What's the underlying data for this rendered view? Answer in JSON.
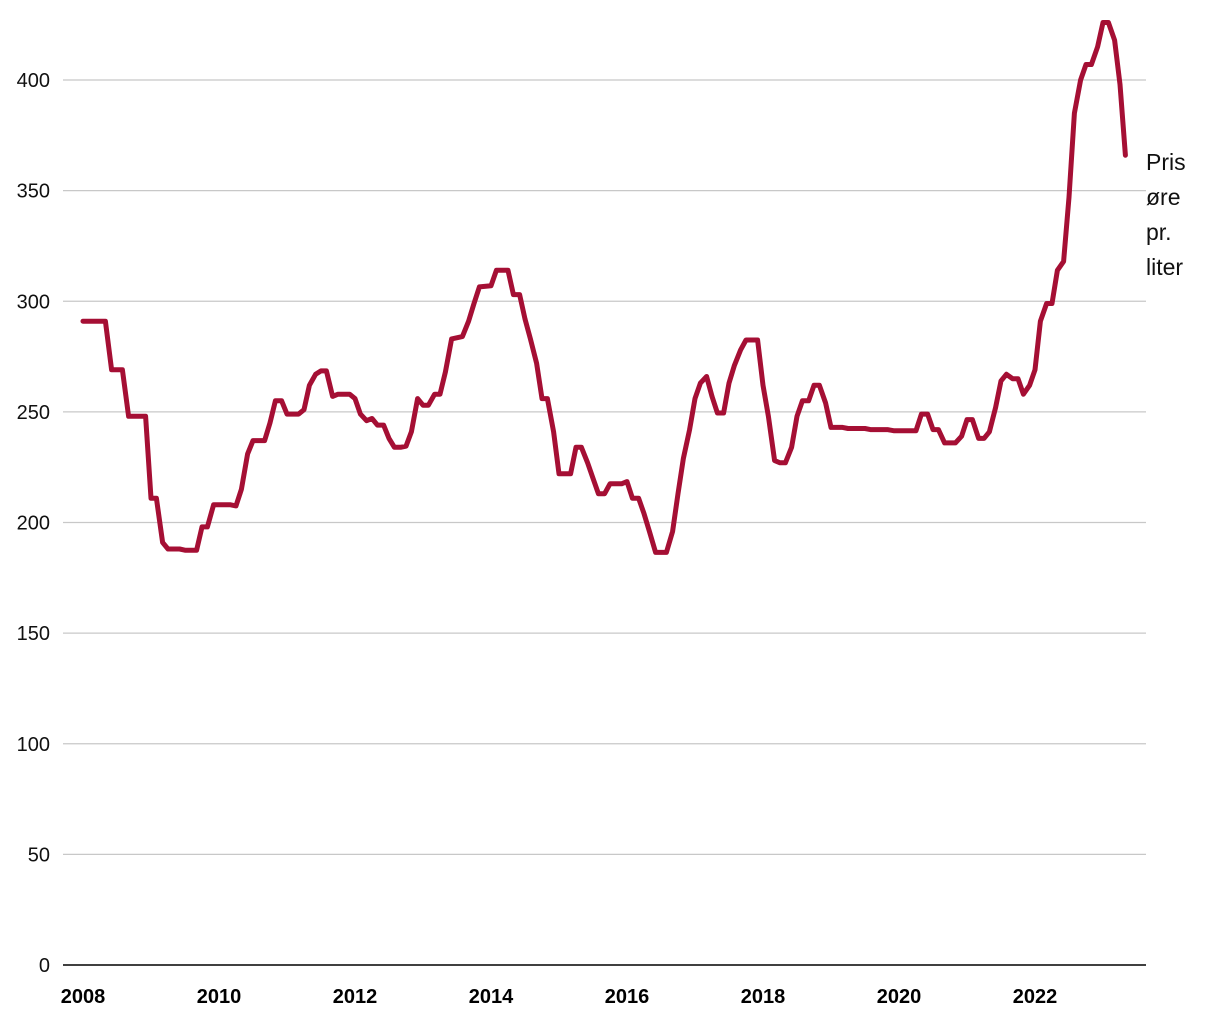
{
  "chart_data": {
    "type": "line",
    "title": "",
    "xlabel": "",
    "ylabel": "",
    "xlim": [
      2007.9,
      2023.7
    ],
    "ylim": [
      0,
      425
    ],
    "y_ticks": [
      "0",
      "50",
      "100",
      "150",
      "200",
      "250",
      "300",
      "350",
      "400"
    ],
    "x_ticks": [
      "2008",
      "2010",
      "2012",
      "2014",
      "2016",
      "2018",
      "2020",
      "2022"
    ],
    "grid": "horizontal",
    "line_color": "#a50f34",
    "grid_color": "#c8c8c8",
    "annotation": [
      "Pris",
      "øre",
      "pr.",
      "liter"
    ],
    "series": [
      {
        "points": [
          [
            2008.0,
            291
          ],
          [
            2008.33,
            291
          ],
          [
            2008.42,
            269
          ],
          [
            2008.58,
            269
          ],
          [
            2008.67,
            248
          ],
          [
            2008.92,
            248
          ],
          [
            2009.0,
            211
          ],
          [
            2009.08,
            211
          ],
          [
            2009.17,
            191
          ],
          [
            2009.25,
            188
          ],
          [
            2009.42,
            188
          ],
          [
            2009.5,
            187.5
          ],
          [
            2009.67,
            187.5
          ],
          [
            2009.75,
            198
          ],
          [
            2009.83,
            198
          ],
          [
            2009.92,
            208
          ],
          [
            2010.17,
            208
          ],
          [
            2010.25,
            207.5
          ],
          [
            2010.33,
            215
          ],
          [
            2010.42,
            231
          ],
          [
            2010.5,
            237
          ],
          [
            2010.67,
            237
          ],
          [
            2010.75,
            245
          ],
          [
            2010.83,
            255
          ],
          [
            2010.92,
            255
          ],
          [
            2011.0,
            249
          ],
          [
            2011.17,
            249
          ],
          [
            2011.25,
            251
          ],
          [
            2011.33,
            262
          ],
          [
            2011.42,
            267
          ],
          [
            2011.5,
            268.5
          ],
          [
            2011.58,
            268.5
          ],
          [
            2011.67,
            257
          ],
          [
            2011.75,
            258
          ],
          [
            2011.92,
            258
          ],
          [
            2012.0,
            256
          ],
          [
            2012.08,
            249
          ],
          [
            2012.17,
            246
          ],
          [
            2012.25,
            247
          ],
          [
            2012.33,
            244
          ],
          [
            2012.42,
            244
          ],
          [
            2012.5,
            238
          ],
          [
            2012.58,
            234
          ],
          [
            2012.67,
            234
          ],
          [
            2012.75,
            234.5
          ],
          [
            2012.83,
            241
          ],
          [
            2012.92,
            256
          ],
          [
            2013.0,
            253
          ],
          [
            2013.08,
            253
          ],
          [
            2013.17,
            258
          ],
          [
            2013.25,
            258
          ],
          [
            2013.33,
            268
          ],
          [
            2013.42,
            283
          ],
          [
            2013.58,
            284
          ],
          [
            2013.67,
            291
          ],
          [
            2013.75,
            299
          ],
          [
            2013.83,
            306.5
          ],
          [
            2014.0,
            307
          ],
          [
            2014.08,
            314
          ],
          [
            2014.25,
            314
          ],
          [
            2014.33,
            303
          ],
          [
            2014.42,
            303
          ],
          [
            2014.5,
            292
          ],
          [
            2014.58,
            283
          ],
          [
            2014.67,
            272
          ],
          [
            2014.75,
            256
          ],
          [
            2014.83,
            256
          ],
          [
            2014.92,
            241
          ],
          [
            2015.0,
            222
          ],
          [
            2015.17,
            222
          ],
          [
            2015.25,
            234
          ],
          [
            2015.33,
            234
          ],
          [
            2015.42,
            227
          ],
          [
            2015.5,
            220
          ],
          [
            2015.58,
            213
          ],
          [
            2015.67,
            213
          ],
          [
            2015.75,
            217.5
          ],
          [
            2015.92,
            217.5
          ],
          [
            2016.0,
            218.5
          ],
          [
            2016.08,
            211
          ],
          [
            2016.17,
            211
          ],
          [
            2016.25,
            204
          ],
          [
            2016.33,
            196
          ],
          [
            2016.42,
            186.5
          ],
          [
            2016.58,
            186.5
          ],
          [
            2016.67,
            196
          ],
          [
            2016.75,
            213
          ],
          [
            2016.83,
            229
          ],
          [
            2016.92,
            242
          ],
          [
            2017.0,
            256
          ],
          [
            2017.08,
            263
          ],
          [
            2017.17,
            266
          ],
          [
            2017.25,
            257
          ],
          [
            2017.33,
            249.5
          ],
          [
            2017.42,
            249.5
          ],
          [
            2017.5,
            263
          ],
          [
            2017.58,
            271
          ],
          [
            2017.67,
            278
          ],
          [
            2017.75,
            282.5
          ],
          [
            2017.92,
            282.5
          ],
          [
            2018.0,
            262
          ],
          [
            2018.08,
            248
          ],
          [
            2018.17,
            228
          ],
          [
            2018.25,
            227
          ],
          [
            2018.33,
            227
          ],
          [
            2018.42,
            234
          ],
          [
            2018.5,
            248
          ],
          [
            2018.58,
            255
          ],
          [
            2018.67,
            255
          ],
          [
            2018.75,
            262
          ],
          [
            2018.83,
            262
          ],
          [
            2018.92,
            254
          ],
          [
            2019.0,
            243
          ],
          [
            2019.17,
            243
          ],
          [
            2019.25,
            242.5
          ],
          [
            2019.5,
            242.5
          ],
          [
            2019.58,
            242
          ],
          [
            2019.83,
            242
          ],
          [
            2019.92,
            241.5
          ],
          [
            2020.25,
            241.5
          ],
          [
            2020.33,
            249
          ],
          [
            2020.42,
            249
          ],
          [
            2020.5,
            242
          ],
          [
            2020.58,
            242
          ],
          [
            2020.67,
            236
          ],
          [
            2020.83,
            236
          ],
          [
            2020.92,
            239
          ],
          [
            2021.0,
            246.5
          ],
          [
            2021.08,
            246.5
          ],
          [
            2021.17,
            238
          ],
          [
            2021.25,
            238
          ],
          [
            2021.33,
            241
          ],
          [
            2021.42,
            252
          ],
          [
            2021.5,
            264
          ],
          [
            2021.58,
            267
          ],
          [
            2021.67,
            265
          ],
          [
            2021.75,
            265
          ],
          [
            2021.83,
            258
          ],
          [
            2021.92,
            262
          ],
          [
            2022.0,
            269
          ],
          [
            2022.08,
            291
          ],
          [
            2022.17,
            299
          ],
          [
            2022.25,
            299
          ],
          [
            2022.33,
            314
          ],
          [
            2022.42,
            318
          ],
          [
            2022.5,
            347
          ],
          [
            2022.58,
            385
          ],
          [
            2022.67,
            400
          ],
          [
            2022.75,
            407
          ],
          [
            2022.83,
            407
          ],
          [
            2022.92,
            415
          ],
          [
            2023.0,
            426
          ],
          [
            2023.08,
            426
          ],
          [
            2023.17,
            418
          ],
          [
            2023.25,
            398
          ],
          [
            2023.33,
            366
          ]
        ]
      }
    ]
  }
}
